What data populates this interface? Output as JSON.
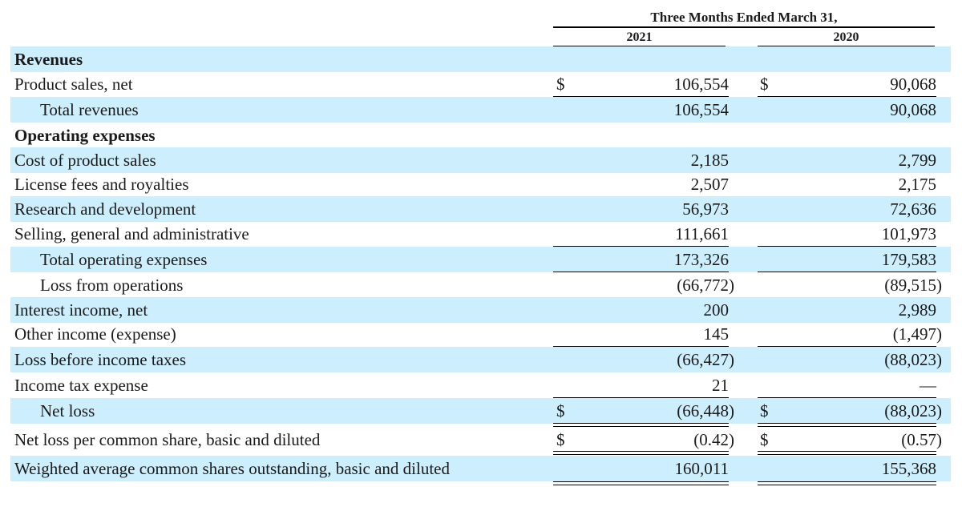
{
  "header": {
    "period_title": "Three Months Ended March 31,",
    "col_2021": "2021",
    "col_2020": "2020"
  },
  "rows": [
    {
      "label": "Revenues"
    },
    {
      "label": "Product sales, net",
      "dollar_2021": "$",
      "v2021": "106,554",
      "dollar_2020": "$",
      "v2020": "90,068"
    },
    {
      "label": "Total revenues",
      "v2021": "106,554",
      "v2020": "90,068"
    },
    {
      "label": "Operating expenses"
    },
    {
      "label": "Cost of product sales",
      "v2021": "2,185",
      "v2020": "2,799"
    },
    {
      "label": "License fees and royalties",
      "v2021": "2,507",
      "v2020": "2,175"
    },
    {
      "label": "Research and development",
      "v2021": "56,973",
      "v2020": "72,636"
    },
    {
      "label": "Selling, general and administrative",
      "v2021": "111,661",
      "v2020": "101,973"
    },
    {
      "label": "Total operating expenses",
      "v2021": "173,326",
      "v2020": "179,583"
    },
    {
      "label": "Loss from operations",
      "v2021": "(66,772)",
      "v2020": "(89,515)"
    },
    {
      "label": "Interest income, net",
      "v2021": "200",
      "v2020": "2,989"
    },
    {
      "label": "Other income (expense)",
      "v2021": "145",
      "v2020": "(1,497)"
    },
    {
      "label": "Loss before income taxes",
      "v2021": "(66,427)",
      "v2020": "(88,023)"
    },
    {
      "label": "Income tax expense",
      "v2021": "21",
      "v2020": "—"
    },
    {
      "label": "Net loss",
      "dollar_2021": "$",
      "v2021": "(66,448)",
      "dollar_2020": "$",
      "v2020": "(88,023)"
    },
    {
      "label": "Net loss per common share, basic and diluted",
      "dollar_2021": "$",
      "v2021": "(0.42)",
      "dollar_2020": "$",
      "v2020": "(0.57)"
    },
    {
      "label": "Weighted average common shares outstanding, basic and diluted",
      "v2021": "160,011",
      "v2020": "155,368"
    }
  ]
}
